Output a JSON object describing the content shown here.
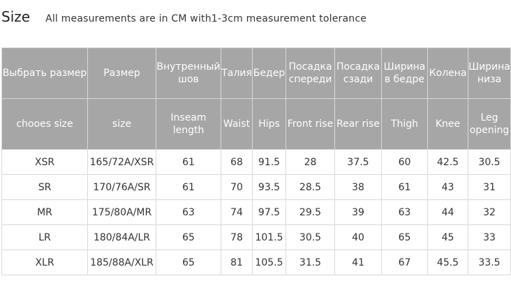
{
  "header": {
    "size_label": "Size",
    "note": "All measurements are in CM with1-3cm measurement tolerance"
  },
  "table": {
    "columns_ru": [
      [
        "Выбрать размер"
      ],
      [
        "Размер"
      ],
      [
        "Внутренный",
        "шов"
      ],
      [
        "Талия"
      ],
      [
        "Бедер"
      ],
      [
        "Посадка",
        "спереди"
      ],
      [
        "Посадка",
        "сзади"
      ],
      [
        "Ширина",
        "в бедре"
      ],
      [
        "Колена"
      ],
      [
        "Ширина",
        "низа"
      ]
    ],
    "columns_en": [
      [
        "chooes size"
      ],
      [
        "size"
      ],
      [
        "Inseam",
        "length"
      ],
      [
        "Waist"
      ],
      [
        "Hips"
      ],
      [
        "Front rise"
      ],
      [
        "Rear rise"
      ],
      [
        "Thigh"
      ],
      [
        "Knee"
      ],
      [
        "Leg",
        "opening"
      ]
    ],
    "rows": [
      [
        "XSR",
        "165/72A/XSR",
        "61",
        "68",
        "91.5",
        "28",
        "37.5",
        "60",
        "42.5",
        "30.5"
      ],
      [
        "SR",
        "170/76A/SR",
        "61",
        "70",
        "93.5",
        "28.5",
        "38",
        "61",
        "43",
        "31"
      ],
      [
        "MR",
        "175/80A/MR",
        "63",
        "74",
        "97.5",
        "29.5",
        "39",
        "63",
        "44",
        "32"
      ],
      [
        "LR",
        "180/84A/LR",
        "65",
        "78",
        "101.5",
        "30.5",
        "40",
        "65",
        "45",
        "33"
      ],
      [
        "XLR",
        "185/88A/XLR",
        "65",
        "81",
        "105.5",
        "31.5",
        "41",
        "67",
        "45.5",
        "33.5"
      ]
    ]
  },
  "colors": {
    "header_bg": "#a6a6a6",
    "header_text": "#ffffff",
    "grid": "#d9d9d9"
  }
}
